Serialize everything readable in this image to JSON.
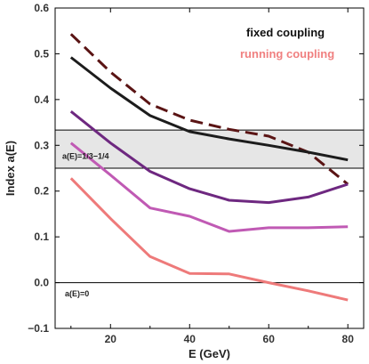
{
  "chart_data": {
    "type": "line",
    "xlabel": "E (GeV)",
    "ylabel": "Index a(E)",
    "xlim": [
      6,
      84
    ],
    "ylim": [
      -0.1,
      0.6
    ],
    "xticks": [
      20,
      40,
      60,
      80
    ],
    "yticks": [
      -0.1,
      0.0,
      0.1,
      0.2,
      0.3,
      0.4,
      0.5,
      0.6
    ],
    "grid": false,
    "legend_placement": "top-right",
    "legend": [
      {
        "label": "fixed coupling",
        "color": "#111111"
      },
      {
        "label": "running coupling",
        "color": "#f08080"
      }
    ],
    "band": {
      "from": 0.25,
      "to": 0.3333,
      "label": "a(E)=1/3−1/4",
      "color": "#e6e6e6"
    },
    "reference_line": {
      "y": 0.0,
      "label": "a(E)=0"
    },
    "series": [
      {
        "color": "#5a1414",
        "dashed": true,
        "x": [
          10,
          20,
          30,
          40,
          50,
          60,
          70,
          80
        ],
        "y": [
          0.543,
          0.46,
          0.39,
          0.355,
          0.335,
          0.32,
          0.285,
          0.215
        ]
      },
      {
        "color": "#1c1c1c",
        "dashed": false,
        "x": [
          10,
          20,
          30,
          40,
          50,
          60,
          70,
          80
        ],
        "y": [
          0.492,
          0.425,
          0.365,
          0.33,
          0.314,
          0.3,
          0.285,
          0.268
        ]
      },
      {
        "color": "#6e2880",
        "dashed": false,
        "x": [
          10,
          20,
          30,
          40,
          50,
          60,
          70,
          80
        ],
        "y": [
          0.374,
          0.305,
          0.243,
          0.205,
          0.18,
          0.175,
          0.187,
          0.215
        ]
      },
      {
        "color": "#c05ab4",
        "dashed": false,
        "x": [
          10,
          20,
          30,
          40,
          50,
          60,
          70,
          80
        ],
        "y": [
          0.305,
          0.235,
          0.163,
          0.145,
          0.112,
          0.12,
          0.12,
          0.122
        ]
      },
      {
        "color": "#ee7a7a",
        "dashed": false,
        "x": [
          10,
          20,
          30,
          40,
          50,
          60,
          70,
          80
        ],
        "y": [
          0.228,
          0.14,
          0.057,
          0.02,
          0.019,
          0.0,
          -0.018,
          -0.038
        ]
      }
    ]
  }
}
